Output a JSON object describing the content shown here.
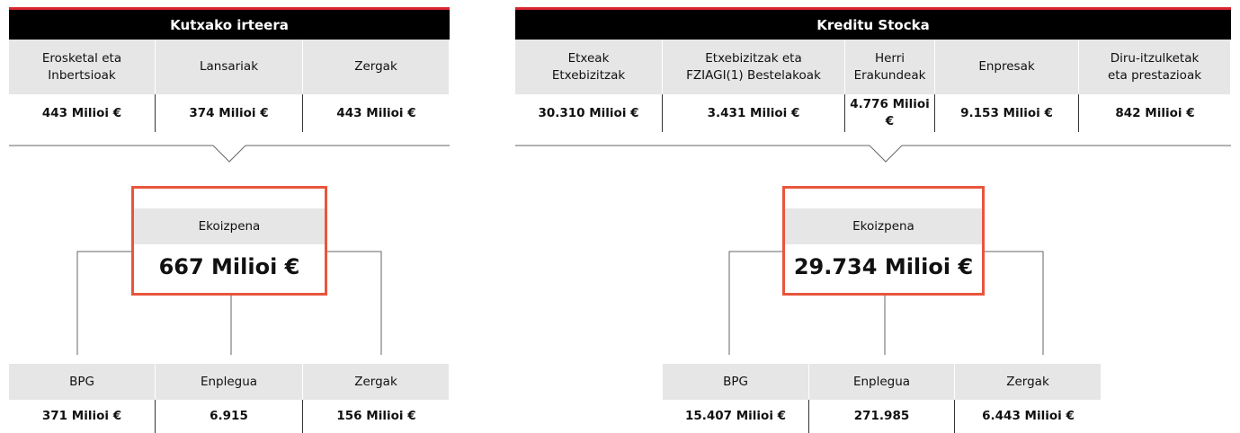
{
  "panels": [
    {
      "title": "Kutxako irteera",
      "columns": [
        {
          "label": [
            "Erosketal eta",
            "Inbertsioak"
          ],
          "value": "443 Milioi €"
        },
        {
          "label": [
            "Lansariak"
          ],
          "value": "374 Milioi €"
        },
        {
          "label": [
            "Zergak"
          ],
          "value": "443 Milioi €"
        }
      ],
      "result": {
        "label": "Ekoizpena",
        "value": "667 Milioi €"
      },
      "impacts": [
        {
          "label": "BPG",
          "value": "371 Milioi €"
        },
        {
          "label": "Enplegua",
          "value": "6.915"
        },
        {
          "label": "Zergak",
          "value": "156 Milioi €"
        }
      ]
    },
    {
      "title": "Kreditu Stocka",
      "columns": [
        {
          "label": [
            "Etxeak",
            "Etxebizitzak"
          ],
          "value": "30.310 Milioi €"
        },
        {
          "label": [
            "Etxebizitzak eta",
            "FZIAGI(1) Bestelakoak"
          ],
          "value": "3.431 Milioi €"
        },
        {
          "label": [
            "Herri",
            "Erakundeak"
          ],
          "value": "4.776 Milioi €"
        },
        {
          "label": [
            "Enpresak"
          ],
          "value": "9.153 Milioi €"
        },
        {
          "label": [
            "Diru-itzulketak",
            "eta prestazioak"
          ],
          "value": "842 Milioi €"
        }
      ],
      "result": {
        "label": "Ekoizpena",
        "value": "29.734 Milioi €"
      },
      "impacts": [
        {
          "label": "BPG",
          "value": "15.407 Milioi €"
        },
        {
          "label": "Enplegua",
          "value": "271.985"
        },
        {
          "label": "Zergak",
          "value": "6.443 Milioi €"
        }
      ]
    }
  ]
}
